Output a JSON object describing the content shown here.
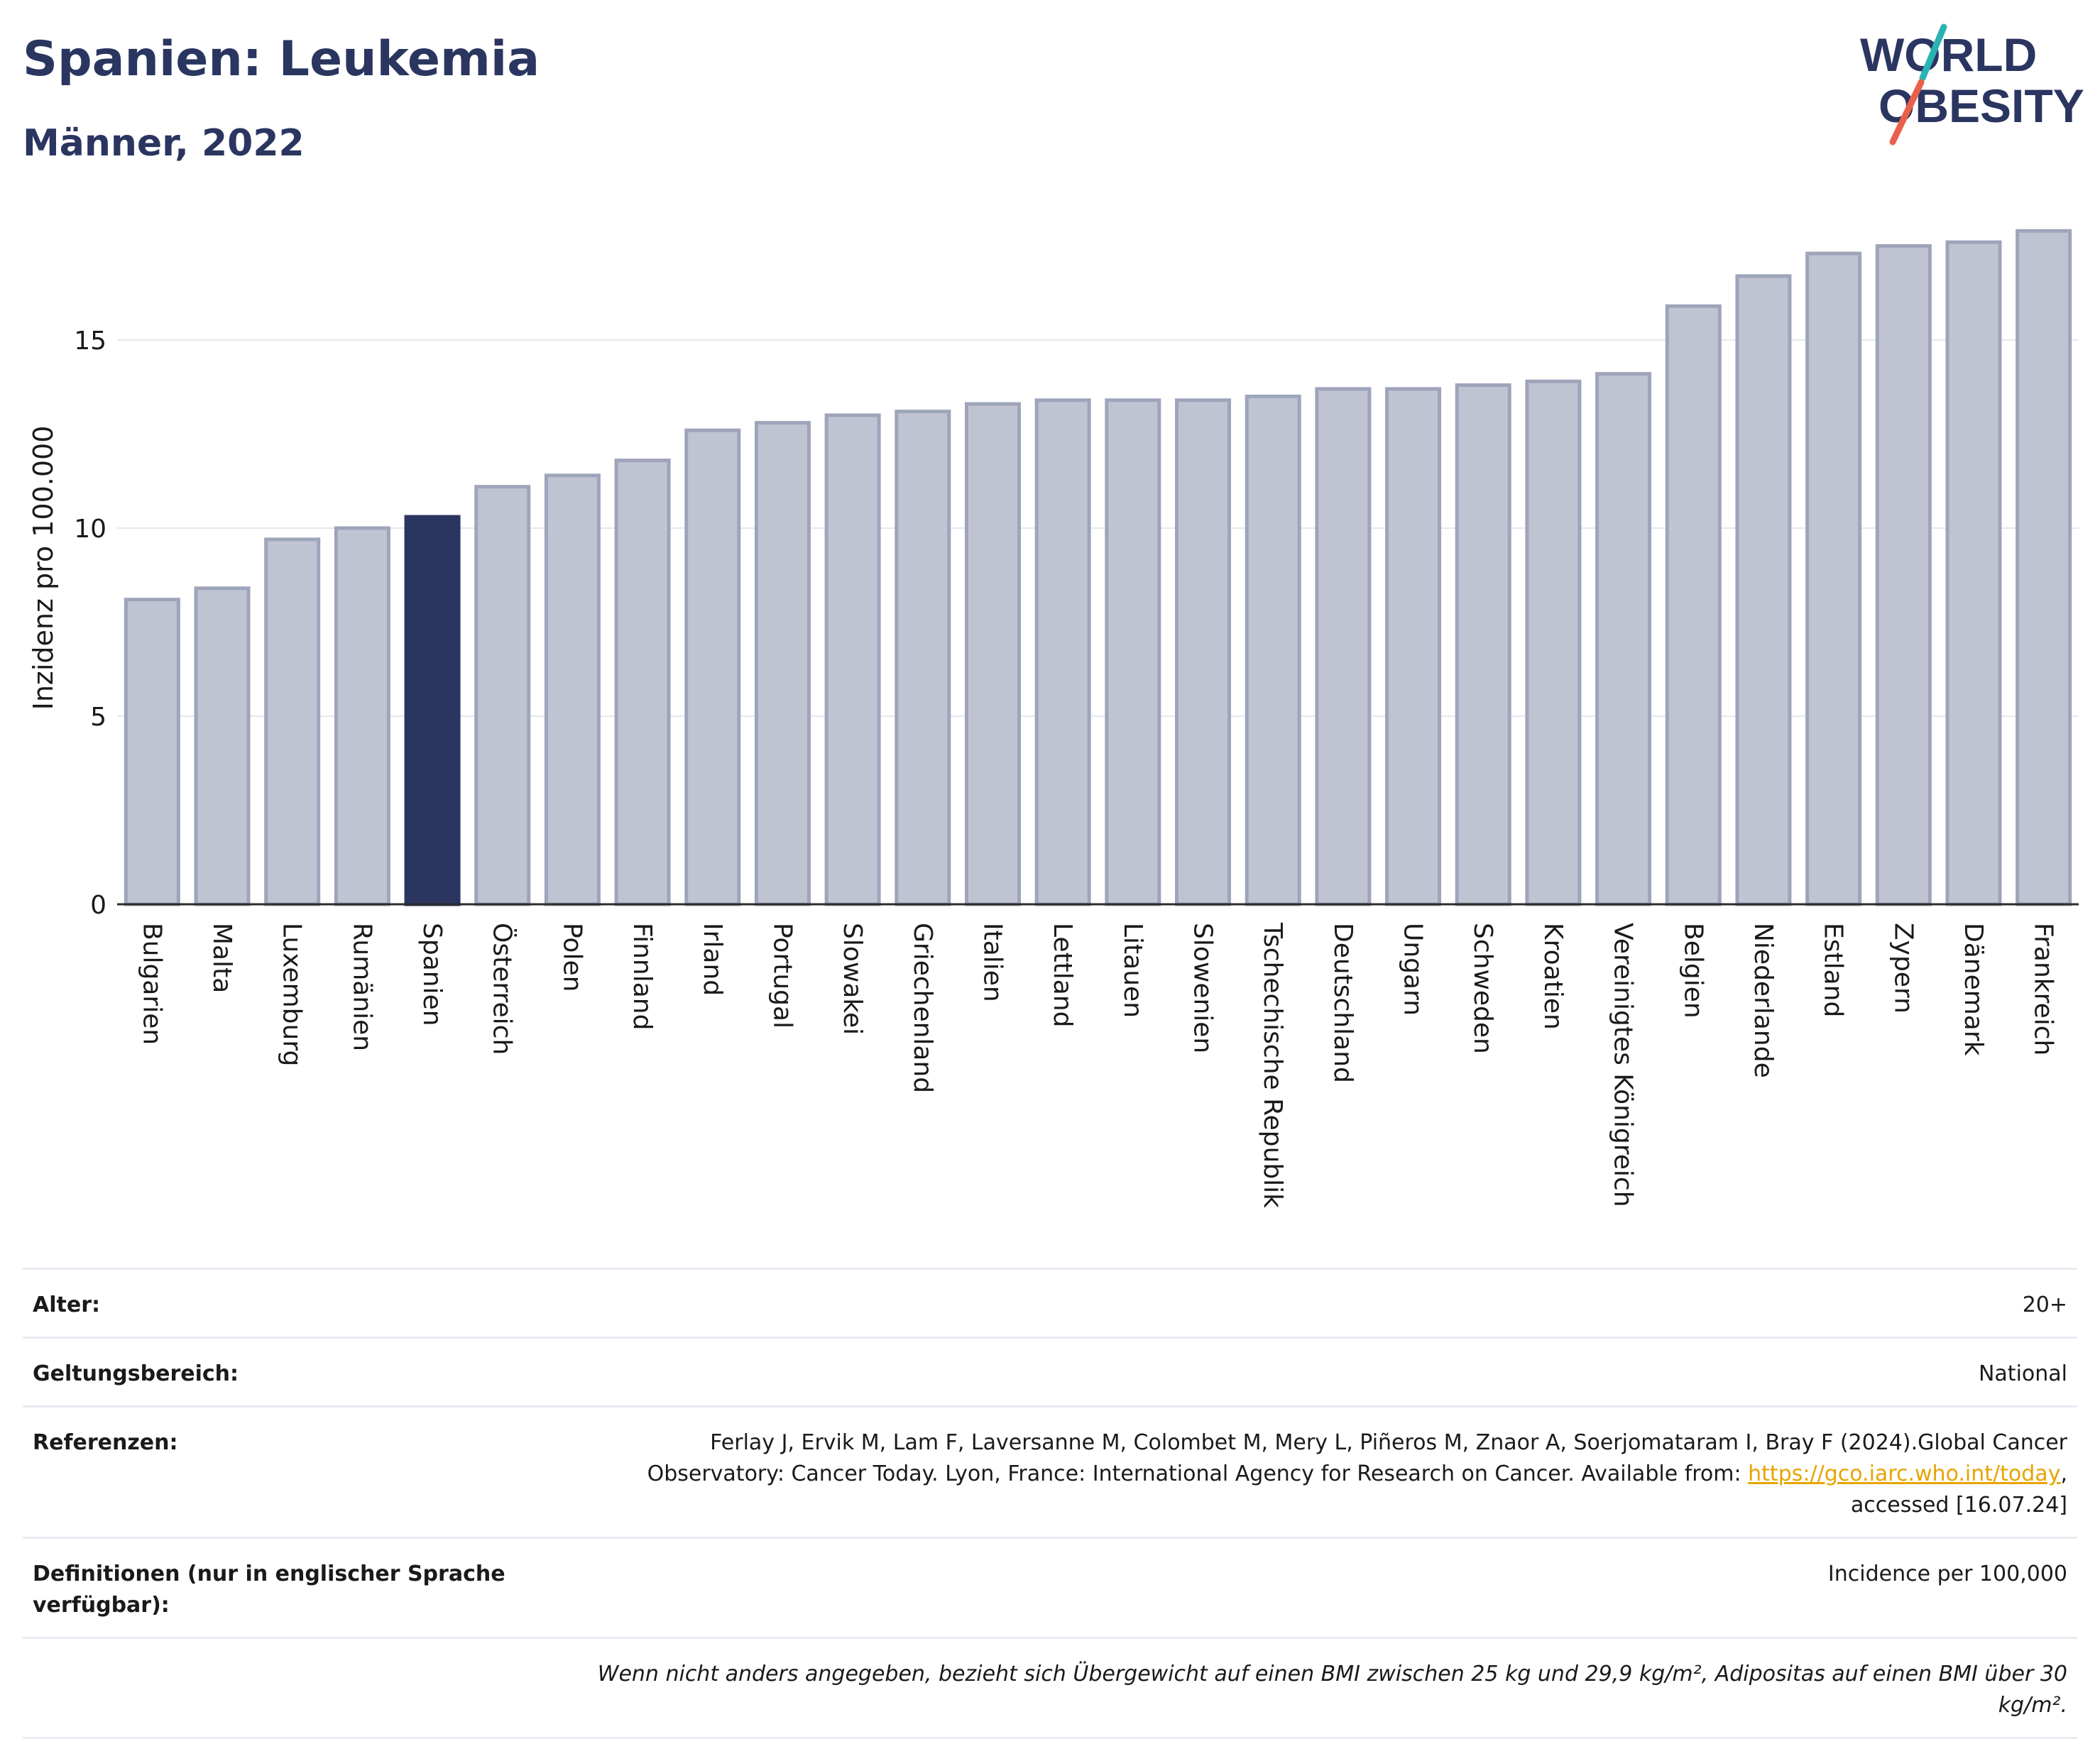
{
  "header": {
    "title": "Spanien: Leukemia",
    "subtitle": "Männer, 2022"
  },
  "logo": {
    "line1": "WORLD",
    "line2": "OBESITY",
    "accent_teal": "#2ab3b5",
    "accent_red": "#e8604c"
  },
  "colors": {
    "bar": "#c0c4d2",
    "bar_border": "#9ea4ba",
    "highlight": "#2a3560"
  },
  "chart_data": {
    "type": "bar",
    "title": "Spanien: Leukemia",
    "subtitle": "Männer, 2022",
    "ylabel": "Inzidenz pro 100.000",
    "xlabel": "",
    "ylim": [
      0,
      18
    ],
    "yticks": [
      0,
      5,
      10,
      15
    ],
    "grid": true,
    "highlight": "Spanien",
    "categories": [
      "Bulgarien",
      "Malta",
      "Luxemburg",
      "Rumänien",
      "Spanien",
      "Österreich",
      "Polen",
      "Finnland",
      "Irland",
      "Portugal",
      "Slowakei",
      "Griechenland",
      "Italien",
      "Lettland",
      "Litauen",
      "Slowenien",
      "Tschechische Republik",
      "Deutschland",
      "Ungarn",
      "Schweden",
      "Kroatien",
      "Vereinigtes Königreich",
      "Belgien",
      "Niederlande",
      "Estland",
      "Zypern",
      "Dänemark",
      "Frankreich"
    ],
    "values": [
      8.1,
      8.4,
      9.7,
      10.0,
      10.3,
      11.1,
      11.4,
      11.8,
      12.6,
      12.8,
      13.0,
      13.1,
      13.3,
      13.4,
      13.4,
      13.4,
      13.5,
      13.7,
      13.7,
      13.8,
      13.9,
      14.1,
      15.9,
      16.7,
      17.3,
      17.5,
      17.6,
      17.9
    ]
  },
  "meta": {
    "age_label": "Alter:",
    "age_value": "20+",
    "scope_label": "Geltungsbereich:",
    "scope_value": "National",
    "refs_label": "Referenzen:",
    "refs_text_1": "Ferlay J, Ervik M, Lam F, Laversanne M, Colombet M, Mery L, Piñeros M, Znaor A, Soerjomataram I, Bray F (2024).Global Cancer Observatory: Cancer Today. Lyon, France: International Agency for Research on Cancer. Available from:",
    "refs_link": "https://gco.iarc.who.int/today",
    "refs_text_2": ", accessed [16.07.24]",
    "defs_label": "Definitionen (nur in englischer Sprache verfügbar):",
    "defs_value": "Incidence per 100,000",
    "note": "Wenn nicht anders angegeben, bezieht sich Übergewicht auf einen BMI zwischen 25 kg und 29,9 kg/m², Adipositas auf einen BMI über 30 kg/m²."
  }
}
